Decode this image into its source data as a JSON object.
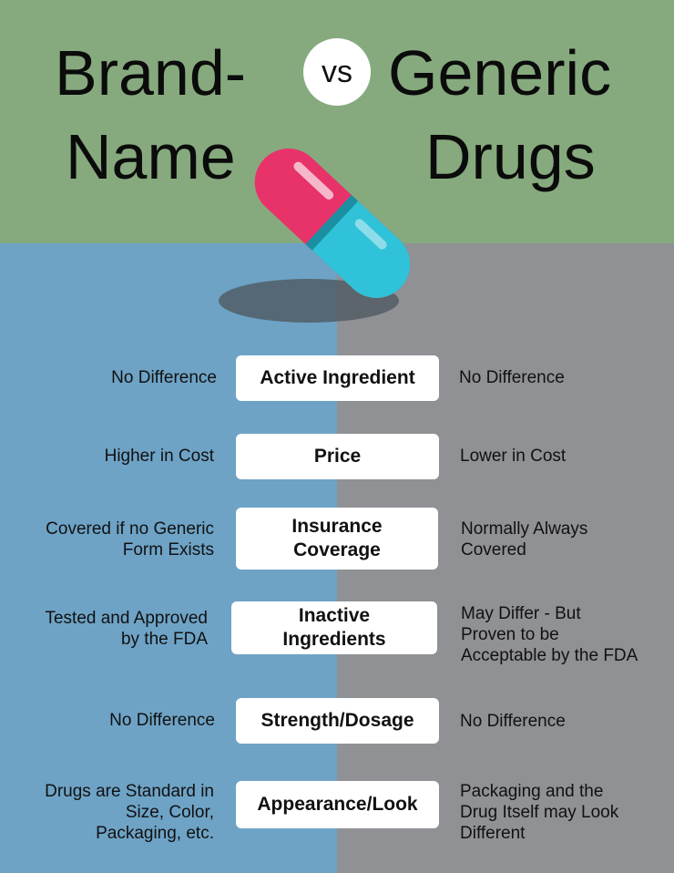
{
  "title": {
    "left_line1": "Brand-",
    "left_line2": "Name",
    "vs": "vs",
    "right_line1": "Generic",
    "right_line2": "Drugs"
  },
  "colors": {
    "header_bg": "#86aa7e",
    "brand_panel": "#6ea3c6",
    "generic_panel": "#909195",
    "pill_pink": "#e8336a",
    "pill_cyan": "#2fc2d8"
  },
  "rows": [
    {
      "label": "Active Ingredient",
      "brand": "No Difference",
      "generic": "No Difference"
    },
    {
      "label": "Price",
      "brand": "Higher in Cost",
      "generic": "Lower in Cost"
    },
    {
      "label": "Insurance\nCoverage",
      "brand": "Covered if no Generic\nForm Exists",
      "generic": "Normally Always\nCovered"
    },
    {
      "label": "Inactive\nIngredients",
      "brand": "Tested and Approved\nby the FDA",
      "generic": "May Differ - But\nProven to be\nAcceptable by the FDA"
    },
    {
      "label": "Strength/Dosage",
      "brand": "No Difference",
      "generic": "No Difference"
    },
    {
      "label": "Appearance/Look",
      "brand": "Drugs are Standard in\nSize, Color,\nPackaging, etc.",
      "generic": "Packaging and the\nDrug Itself may Look\nDifferent"
    }
  ]
}
